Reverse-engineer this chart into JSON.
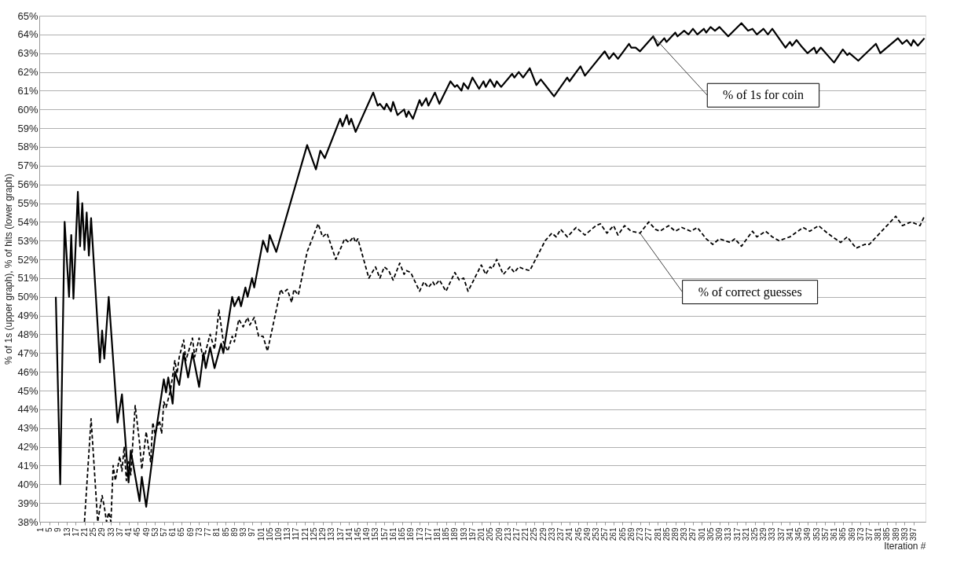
{
  "chart_data": {
    "type": "line",
    "xlabel": "Iteration #",
    "ylabel": "% of 1s (upper graph), % of hits (lower graph)",
    "xlim": [
      0.5,
      402.5
    ],
    "ylim": [
      38,
      65
    ],
    "xticks": [
      1,
      5,
      9,
      13,
      17,
      21,
      25,
      29,
      33,
      37,
      41,
      45,
      49,
      53,
      57,
      61,
      65,
      69,
      73,
      77,
      81,
      85,
      89,
      93,
      97,
      101,
      105,
      109,
      113,
      117,
      121,
      125,
      129,
      133,
      137,
      141,
      145,
      149,
      153,
      157,
      161,
      165,
      169,
      173,
      177,
      181,
      185,
      189,
      193,
      197,
      201,
      205,
      209,
      213,
      217,
      221,
      225,
      229,
      233,
      237,
      241,
      245,
      249,
      253,
      257,
      261,
      265,
      269,
      273,
      277,
      281,
      285,
      289,
      293,
      297,
      301,
      305,
      309,
      313,
      317,
      321,
      325,
      329,
      333,
      337,
      341,
      345,
      349,
      353,
      357,
      361,
      365,
      369,
      373,
      377,
      381,
      385,
      389,
      393,
      397
    ],
    "yticks": [
      {
        "value": 38,
        "label": "38%"
      },
      {
        "value": 39,
        "label": "39%"
      },
      {
        "value": 40,
        "label": "40%"
      },
      {
        "value": 41,
        "label": "41%"
      },
      {
        "value": 42,
        "label": "42%"
      },
      {
        "value": 43,
        "label": "43%"
      },
      {
        "value": 44,
        "label": "44%"
      },
      {
        "value": 45,
        "label": "45%"
      },
      {
        "value": 46,
        "label": "46%"
      },
      {
        "value": 47,
        "label": "47%"
      },
      {
        "value": 48,
        "label": "48%"
      },
      {
        "value": 49,
        "label": "49%"
      },
      {
        "value": 50,
        "label": "50%"
      },
      {
        "value": 51,
        "label": "51%"
      },
      {
        "value": 52,
        "label": "52%"
      },
      {
        "value": 53,
        "label": "53%"
      },
      {
        "value": 54,
        "label": "54%"
      },
      {
        "value": 55,
        "label": "55%"
      },
      {
        "value": 56,
        "label": "56%"
      },
      {
        "value": 57,
        "label": "57%"
      },
      {
        "value": 58,
        "label": "58%"
      },
      {
        "value": 59,
        "label": "59%"
      },
      {
        "value": 60,
        "label": "60%"
      },
      {
        "value": 61,
        "label": "61%"
      },
      {
        "value": 62,
        "label": "62%"
      },
      {
        "value": 63,
        "label": "63%"
      },
      {
        "value": 64,
        "label": "64%"
      },
      {
        "value": 65,
        "label": "65%"
      }
    ],
    "grid": "y",
    "legend": false,
    "series": [
      {
        "type": "line",
        "color": "#000000",
        "line_style": "solid",
        "x": [
          8,
          10,
          12,
          14,
          15,
          16,
          18,
          19,
          20,
          21,
          22,
          23,
          24,
          28,
          29,
          30,
          32,
          36,
          38,
          41,
          42,
          46,
          47,
          49,
          53,
          57,
          58,
          59,
          61,
          62,
          64,
          66,
          68,
          70,
          73,
          75,
          76,
          78,
          80,
          83,
          84,
          88,
          89,
          91,
          92,
          94,
          95,
          97,
          98,
          102,
          104,
          105,
          108,
          122,
          126,
          128,
          130,
          137,
          138,
          140,
          141,
          142,
          144,
          152,
          154,
          155,
          157,
          158,
          160,
          161,
          163,
          164,
          166,
          167,
          168,
          170,
          173,
          174,
          176,
          177,
          180,
          182,
          187,
          189,
          190,
          192,
          193,
          195,
          197,
          200,
          202,
          203,
          205,
          207,
          208,
          210,
          215,
          216,
          218,
          220,
          223,
          226,
          228,
          230,
          234,
          240,
          241,
          246,
          248,
          257,
          259,
          261,
          263,
          268,
          269,
          271,
          273,
          279,
          281,
          284,
          285,
          289,
          290,
          293,
          295,
          297,
          299,
          302,
          303,
          305,
          307,
          309,
          313,
          319,
          322,
          324,
          326,
          329,
          331,
          333,
          339,
          341,
          342,
          344,
          346,
          349,
          352,
          353,
          355,
          361,
          365,
          367,
          368,
          372,
          380,
          382,
          390,
          392,
          394,
          396,
          397,
          399,
          402
        ],
        "values": [
          50,
          40,
          54,
          50,
          53.3,
          49.9,
          55.6,
          52.7,
          55,
          52.5,
          54.5,
          52.2,
          54.2,
          46.5,
          48.2,
          46.7,
          50,
          43.3,
          44.8,
          40.1,
          41.8,
          39.1,
          40.4,
          38.8,
          42.5,
          45.6,
          44.9,
          45.7,
          44.3,
          46,
          45.3,
          47,
          45.7,
          47,
          45.2,
          47,
          46.2,
          47.3,
          46.2,
          47.5,
          47,
          50,
          49.5,
          50,
          49.5,
          50.5,
          50,
          51,
          50.5,
          53,
          52.4,
          53.3,
          52.4,
          58.1,
          56.8,
          57.8,
          57.4,
          59.5,
          59.1,
          59.7,
          59.2,
          59.5,
          58.8,
          60.9,
          60.2,
          60.3,
          60,
          60.3,
          59.9,
          60.4,
          59.7,
          59.8,
          60,
          59.6,
          59.9,
          59.5,
          60.5,
          60.2,
          60.6,
          60.2,
          60.9,
          60.3,
          61.5,
          61.2,
          61.3,
          61,
          61.4,
          61.1,
          61.7,
          61.1,
          61.5,
          61.2,
          61.6,
          61.2,
          61.5,
          61.2,
          61.9,
          61.7,
          62,
          61.7,
          62.2,
          61.3,
          61.6,
          61.3,
          60.7,
          61.7,
          61.5,
          62.3,
          61.8,
          63.1,
          62.7,
          63,
          62.7,
          63.5,
          63.3,
          63.3,
          63.1,
          63.9,
          63.4,
          63.8,
          63.6,
          64.1,
          63.9,
          64.2,
          64,
          64.3,
          64,
          64.3,
          64.1,
          64.4,
          64.2,
          64.4,
          63.9,
          64.6,
          64.2,
          64.3,
          64,
          64.3,
          64,
          64.3,
          63.3,
          63.6,
          63.4,
          63.7,
          63.4,
          63,
          63.3,
          63,
          63.3,
          62.5,
          63.2,
          62.9,
          63,
          62.6,
          63.5,
          63,
          63.8,
          63.5,
          63.7,
          63.4,
          63.7,
          63.4,
          63.8
        ]
      },
      {
        "type": "line",
        "color": "#000000",
        "line_style": "dashed",
        "x": [
          21,
          24,
          27,
          29,
          30,
          31,
          32,
          33,
          34,
          35,
          37,
          38,
          39,
          40,
          41,
          42,
          44,
          46,
          47,
          49,
          51,
          52,
          53,
          55,
          56,
          57,
          58,
          60,
          62,
          63,
          64,
          66,
          67,
          70,
          71,
          73,
          75,
          76,
          78,
          80,
          82,
          84,
          86,
          88,
          89,
          91,
          93,
          95,
          96,
          98,
          100,
          102,
          104,
          110,
          111,
          113,
          115,
          116,
          118,
          122,
          127,
          129,
          131,
          135,
          138,
          139,
          141,
          143,
          144,
          145,
          150,
          153,
          155,
          157,
          159,
          161,
          164,
          166,
          167,
          169,
          173,
          175,
          177,
          179,
          180,
          182,
          185,
          189,
          191,
          193,
          195,
          201,
          203,
          205,
          206,
          208,
          211,
          214,
          216,
          218,
          220,
          223,
          230,
          233,
          235,
          237,
          240,
          244,
          248,
          253,
          255,
          258,
          261,
          263,
          266,
          269,
          273,
          277,
          280,
          282,
          286,
          289,
          292,
          296,
          299,
          303,
          306,
          309,
          314,
          316,
          319,
          324,
          326,
          330,
          333,
          336,
          341,
          347,
          350,
          354,
          358,
          364,
          367,
          371,
          375,
          377,
          389,
          392,
          396,
          398,
          400,
          402
        ],
        "values": [
          38,
          43.5,
          38,
          39.4,
          38.8,
          38,
          38.5,
          38,
          41,
          40.2,
          41.5,
          40.7,
          42,
          40.2,
          41.2,
          40.5,
          44.2,
          42.2,
          40.8,
          42.8,
          41.2,
          43.3,
          42.7,
          43.4,
          42.7,
          44.4,
          44.1,
          45,
          46.6,
          45.9,
          46.8,
          47.7,
          46.6,
          47.8,
          46.8,
          47.8,
          46.6,
          47.1,
          48,
          47.2,
          49.3,
          47.6,
          47.1,
          47.9,
          47.6,
          48.8,
          48.4,
          48.9,
          48.5,
          48.9,
          47.9,
          47.9,
          47.1,
          50.4,
          50.2,
          50.4,
          49.7,
          50.4,
          50.1,
          52.4,
          53.9,
          53.2,
          53.4,
          52,
          52.8,
          53.1,
          52.9,
          53.2,
          52.9,
          53.1,
          51,
          51.6,
          51,
          51.6,
          51.4,
          50.9,
          51.8,
          51.2,
          51.4,
          51.3,
          50.3,
          50.8,
          50.5,
          50.8,
          50.6,
          50.9,
          50.3,
          51.3,
          50.9,
          51,
          50.3,
          51.7,
          51.2,
          51.6,
          51.5,
          52,
          51.2,
          51.6,
          51.3,
          51.6,
          51.5,
          51.4,
          53,
          53.4,
          53.2,
          53.6,
          53.2,
          53.7,
          53.3,
          53.8,
          53.9,
          53.4,
          53.8,
          53.3,
          53.8,
          53.5,
          53.4,
          54,
          53.6,
          53.5,
          53.8,
          53.5,
          53.7,
          53.5,
          53.7,
          53.1,
          52.8,
          53.1,
          52.9,
          53.1,
          52.7,
          53.5,
          53.2,
          53.5,
          53.2,
          53,
          53.2,
          53.7,
          53.5,
          53.8,
          53.4,
          52.9,
          53.2,
          52.6,
          52.8,
          52.8,
          54.3,
          53.8,
          54,
          53.9,
          53.8,
          54.3
        ]
      }
    ],
    "annotations": [
      {
        "text": "% of 1s for coin",
        "x": 279,
        "y": 63.9
      },
      {
        "text": "% of correct guesses",
        "x": 273,
        "y": 53.4
      }
    ]
  }
}
